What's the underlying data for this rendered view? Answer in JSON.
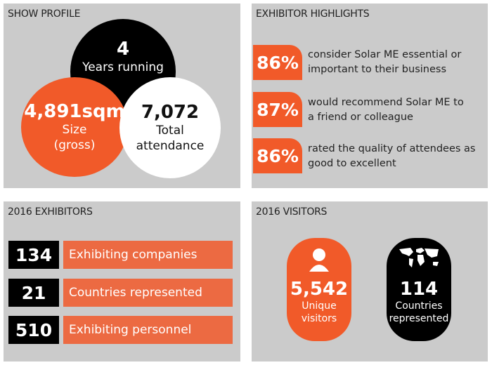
{
  "colors": {
    "accent": "#f15a29",
    "panel": "#cbcbcb",
    "dark": "#000000"
  },
  "show_profile": {
    "title": "SHOW PROFILE",
    "years": {
      "value": "4",
      "label": "Years running"
    },
    "size": {
      "value": "4,891sqm",
      "label1": "Size",
      "label2": "(gross)"
    },
    "attendance": {
      "value": "7,072",
      "label1": "Total",
      "label2": "attendance"
    }
  },
  "highlights": {
    "title": "EXHIBITOR HIGHLIGHTS",
    "items": [
      {
        "pct": "86%",
        "line1": "consider Solar ME essential or",
        "line2": "important to their business"
      },
      {
        "pct": "87%",
        "line1": "would recommend Solar ME to",
        "line2": "a friend or colleague"
      },
      {
        "pct": "86%",
        "line1": "rated the quality of attendees as",
        "line2": "good to excellent"
      }
    ]
  },
  "exhibitors": {
    "title": "2016 EXHIBITORS",
    "rows": [
      {
        "value": "134",
        "label": "Exhibiting companies"
      },
      {
        "value": "21",
        "label": "Countries represented"
      },
      {
        "value": "510",
        "label": "Exhibiting personnel"
      }
    ]
  },
  "visitors": {
    "title": "2016 VISITORS",
    "unique": {
      "icon": "person-icon",
      "value": "5,542",
      "label1": "Unique",
      "label2": "visitors"
    },
    "countries": {
      "icon": "world-map-icon",
      "value": "114",
      "label1": "Countries",
      "label2": "represented"
    }
  }
}
